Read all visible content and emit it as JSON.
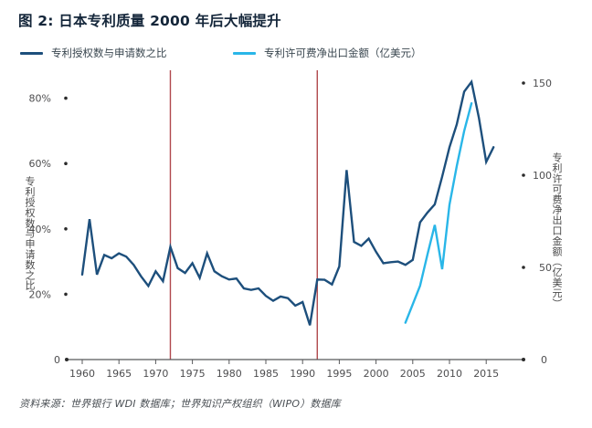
{
  "title": "图 2: 日本专利质量 2000 年后大幅提升",
  "legend": {
    "items": [
      {
        "label": "专利授权数与申请数之比",
        "color": "#1d4f7c"
      },
      {
        "label": "专利许可费净出口金额（亿美元）",
        "color": "#29b6e8"
      }
    ]
  },
  "axes": {
    "left": {
      "label": "专利授权数与申请数之比"
    },
    "right": {
      "label": "专利许可费净出口金额（亿美元）"
    }
  },
  "source": "资料来源：世界银行 WDI 数据库；世界知识产权组织（WIPO）数据库",
  "colors": {
    "ratio_line": "#1d4f7c",
    "license_line": "#29b6e8",
    "reference_line": "#b0484d",
    "axis": "#58595b",
    "tick_text": "#4d4d4f",
    "tick_dot": "#2b2b2b"
  },
  "chart_data": {
    "type": "line",
    "title": "图 2: 日本专利质量 2000 年后大幅提升",
    "grid": false,
    "legend_position": "top",
    "x_ticks": [
      1960,
      1965,
      1970,
      1975,
      1980,
      1985,
      1990,
      1995,
      2000,
      2005,
      2010,
      2015
    ],
    "reference_lines_x": [
      1972,
      1992
    ],
    "left_axis": {
      "label": "专利授权数与申请数之比",
      "unit": "%",
      "tick_values": [
        80,
        60,
        40,
        20,
        0
      ],
      "tick_labels": [
        "80%",
        "60%",
        "40%",
        "20%",
        "0"
      ],
      "range": [
        0,
        88
      ]
    },
    "right_axis": {
      "label": "专利许可费净出口金额（亿美元）",
      "tick_values": [
        150,
        100,
        50,
        0
      ],
      "tick_labels": [
        "150",
        "100",
        "50",
        "0"
      ],
      "range": [
        0,
        157
      ]
    },
    "series": [
      {
        "name": "专利授权数与申请数之比",
        "axis": "left",
        "color": "#1d4f7c",
        "x": [
          1960,
          1961,
          1962,
          1963,
          1964,
          1965,
          1966,
          1967,
          1968,
          1969,
          1970,
          1971,
          1972,
          1973,
          1974,
          1975,
          1976,
          1977,
          1978,
          1979,
          1980,
          1981,
          1982,
          1983,
          1984,
          1985,
          1986,
          1987,
          1988,
          1989,
          1990,
          1991,
          1992,
          1993,
          1994,
          1995,
          1996,
          1997,
          1998,
          1999,
          2000,
          2001,
          2002,
          2003,
          2004,
          2005,
          2006,
          2007,
          2008,
          2009,
          2010,
          2011,
          2012,
          2013,
          2014,
          2015,
          2016
        ],
        "values": [
          26,
          43,
          26,
          32,
          31,
          32.5,
          31.5,
          29,
          25.5,
          22.5,
          27,
          24,
          34.5,
          28,
          26.5,
          29.5,
          25,
          32.5,
          27,
          25.5,
          24.5,
          24.8,
          21.8,
          21.3,
          21.8,
          19.5,
          18,
          19.3,
          18.8,
          16.5,
          17.6,
          10.5,
          24.5,
          24.4,
          23,
          28.5,
          58,
          36,
          34.8,
          37,
          33,
          29.5,
          29.8,
          30,
          29,
          30.5,
          42,
          45,
          47.5,
          56,
          65,
          72,
          82,
          85,
          74,
          60.5,
          65
        ]
      },
      {
        "name": "专利许可费净出口金额（亿美元）",
        "axis": "right",
        "color": "#29b6e8",
        "x": [
          2004,
          2005,
          2006,
          2007,
          2008,
          2009,
          2010,
          2011,
          2012,
          2013
        ],
        "values": [
          20,
          30,
          40,
          57,
          73,
          49,
          84,
          105,
          124,
          139
        ]
      }
    ]
  }
}
